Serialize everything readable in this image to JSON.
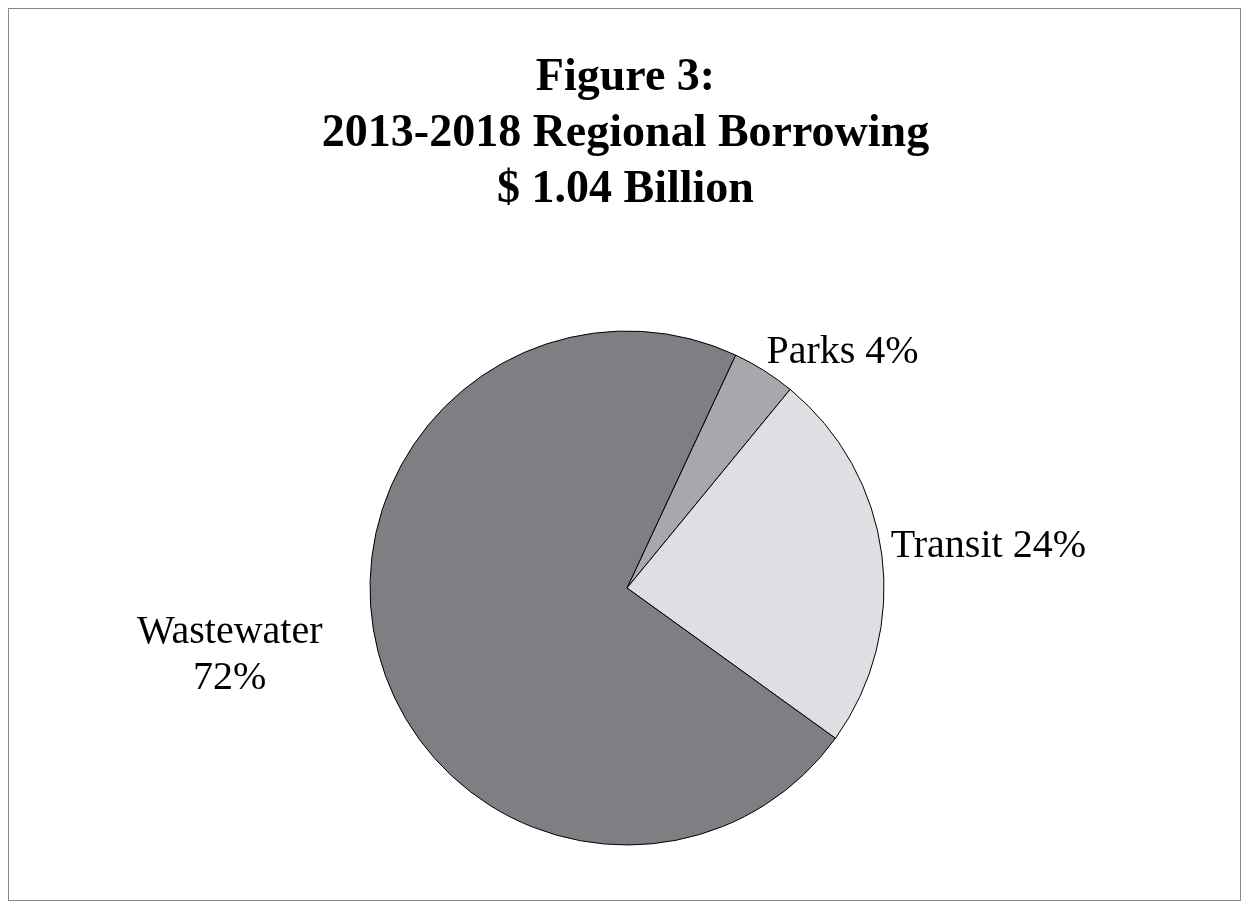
{
  "chart_data": {
    "type": "pie",
    "title": "Figure 3:\n2013-2018 Regional Borrowing\n$ 1.04 Billion",
    "categories": [
      "Parks",
      "Transit",
      "Wastewater"
    ],
    "values": [
      4,
      24,
      72
    ],
    "value_labels": [
      "4%",
      "24%",
      "72%"
    ],
    "colors": [
      "#a9a7ab",
      "#e0dee2",
      "#807e82"
    ]
  }
}
